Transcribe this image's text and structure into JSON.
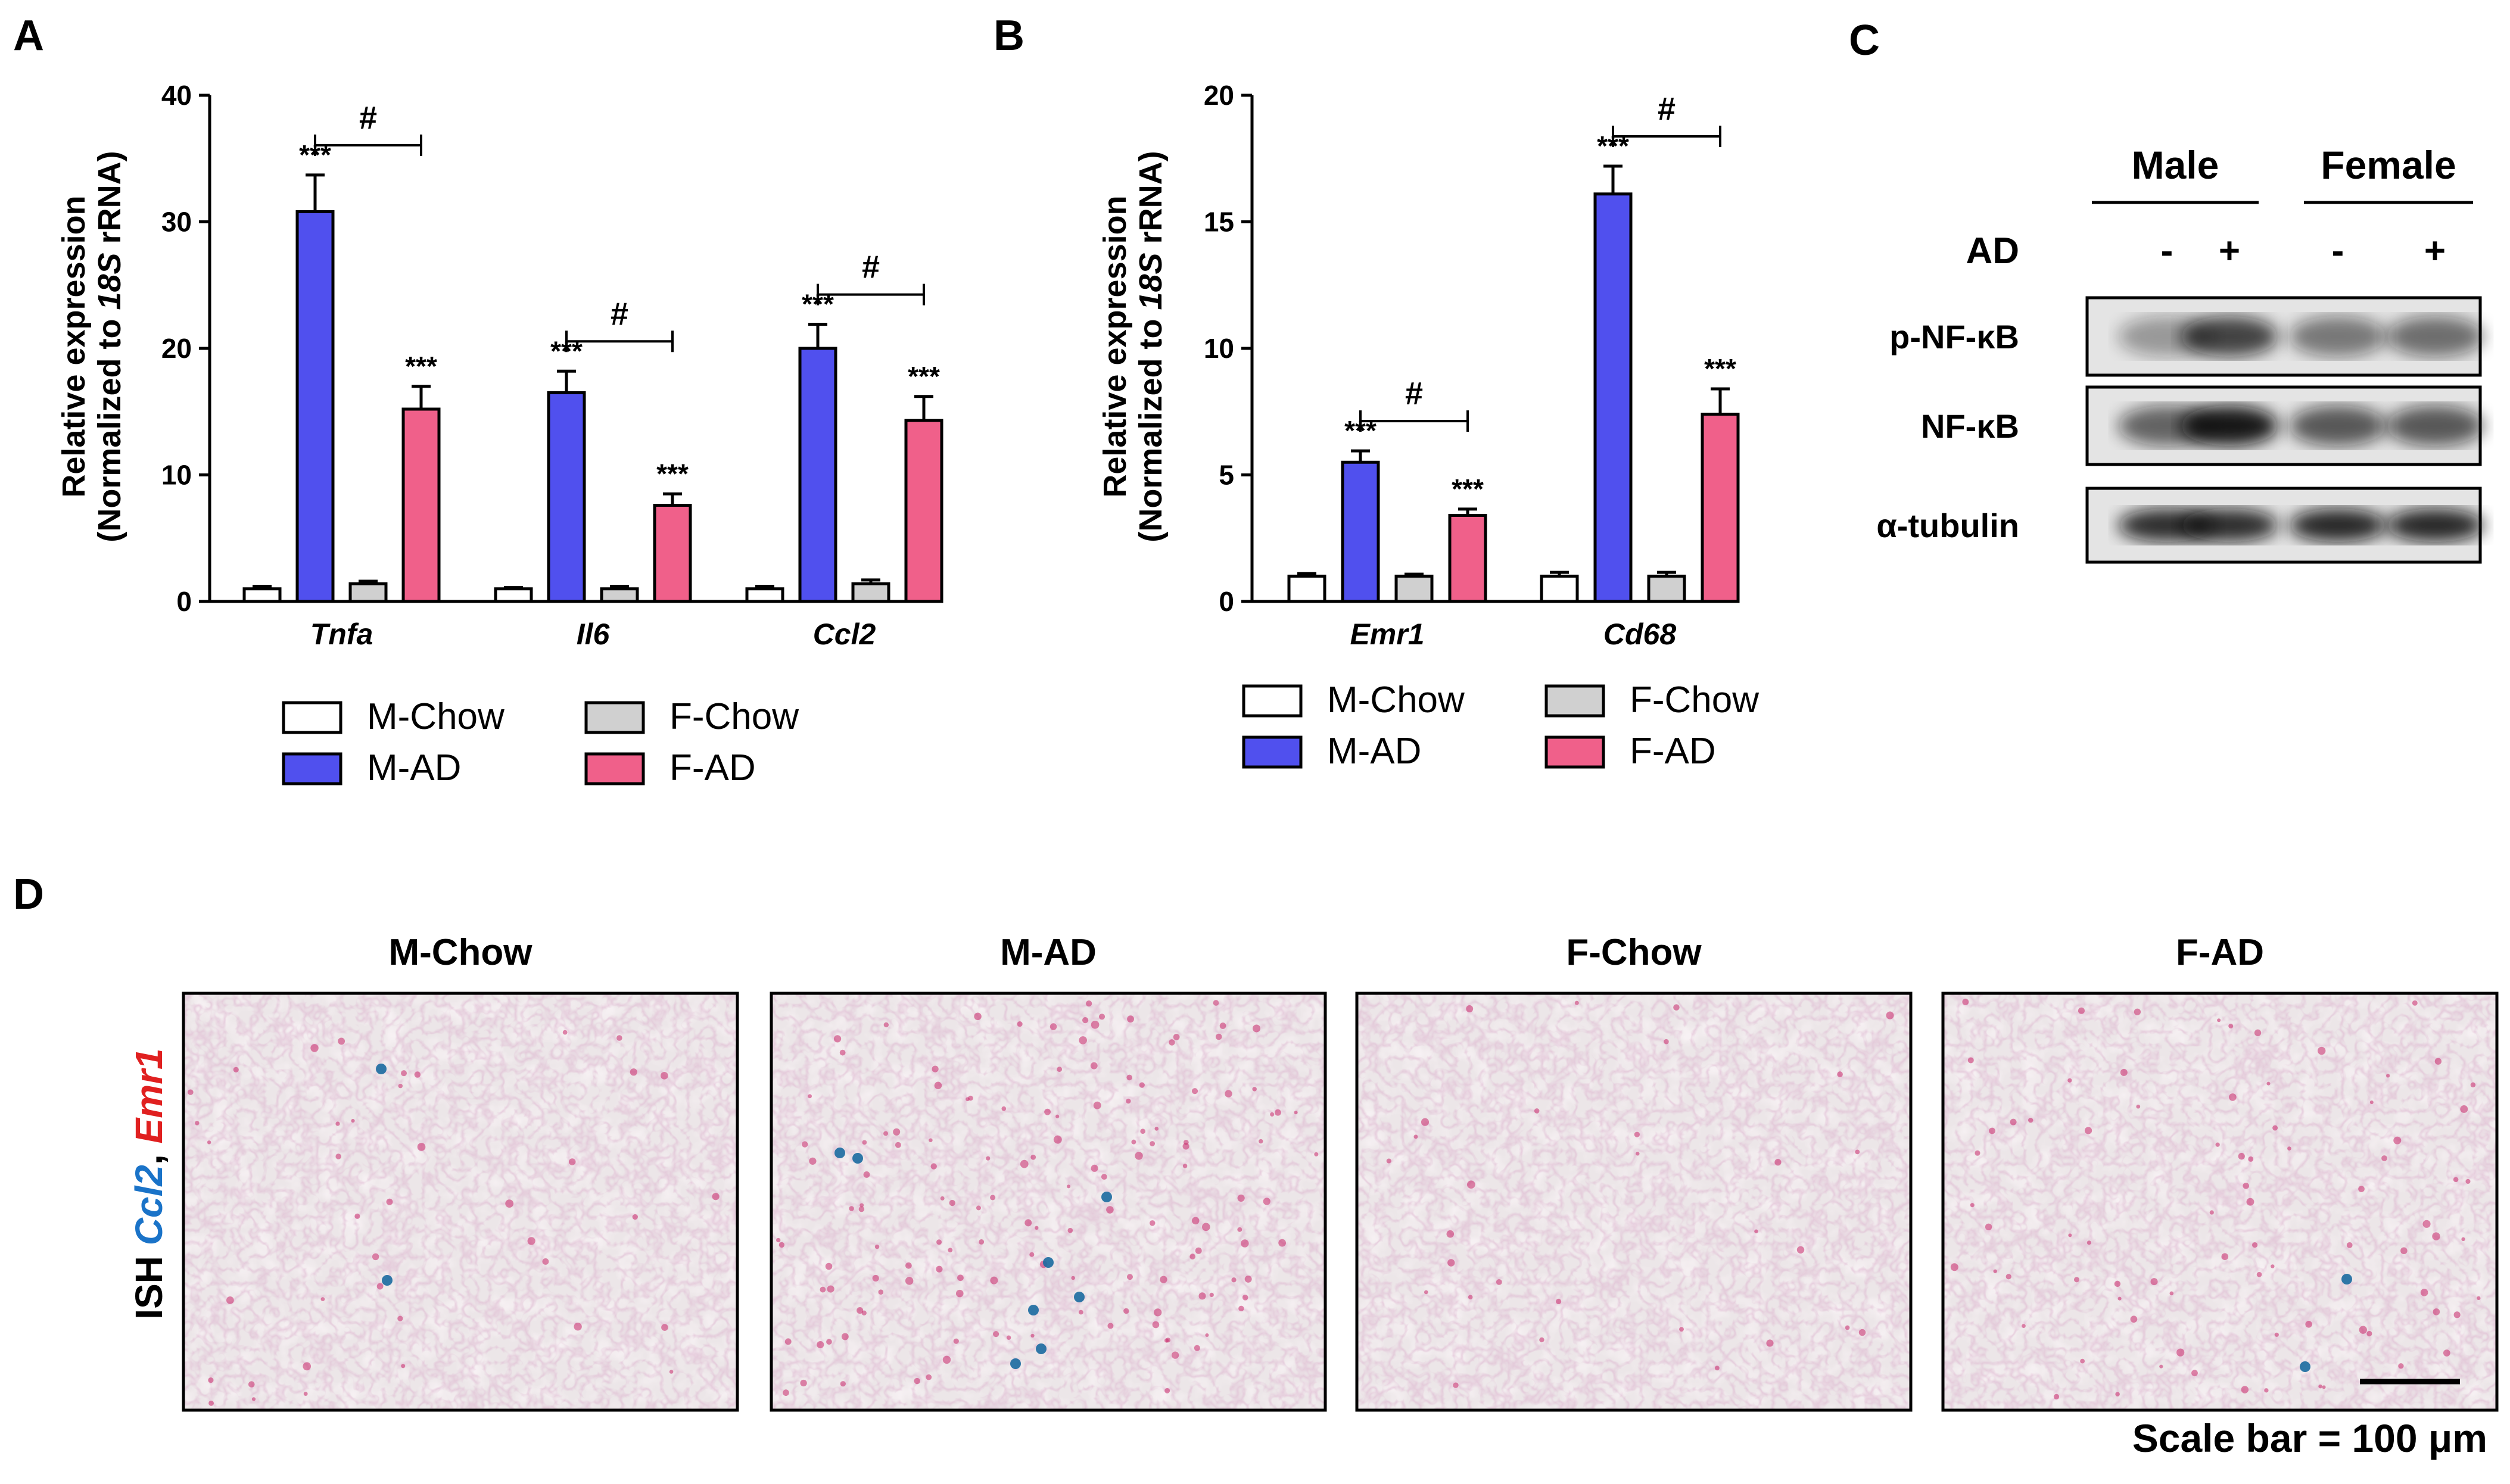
{
  "panels": {
    "a": "A",
    "b": "B",
    "c": "C",
    "d": "D"
  },
  "colors": {
    "M-Chow": "#ffffff",
    "M-AD": "#5050ee",
    "F-Chow": "#d0d0d0",
    "F-AD": "#f0608a",
    "ccl2_blue": "#1a73c8",
    "emr1_red": "#e02020"
  },
  "legend": [
    "M-Chow",
    "M-AD",
    "F-Chow",
    "F-AD"
  ],
  "chart_data": [
    {
      "type": "bar",
      "panel": "A",
      "ylabel_line1": "Relative expression",
      "ylabel_line2_pre": "(Normalized to ",
      "ylabel_line2_italic": "18S",
      "ylabel_line2_post": " rRNA)",
      "ylim": [
        0,
        40
      ],
      "yticks": [
        "0",
        "10",
        "20",
        "30",
        "40"
      ],
      "categories": [
        "Tnfa",
        "Il6",
        "Ccl2"
      ],
      "series": [
        {
          "name": "M-Chow",
          "values": [
            1.0,
            1.0,
            1.0
          ],
          "errors": [
            0.2,
            0.1,
            0.2
          ]
        },
        {
          "name": "M-AD",
          "values": [
            30.8,
            16.5,
            20.0
          ],
          "errors": [
            2.9,
            1.7,
            1.9
          ]
        },
        {
          "name": "F-Chow",
          "values": [
            1.4,
            1.0,
            1.4
          ],
          "errors": [
            0.2,
            0.2,
            0.3
          ]
        },
        {
          "name": "F-AD",
          "values": [
            15.2,
            7.6,
            14.3
          ],
          "errors": [
            1.8,
            0.9,
            1.9
          ]
        }
      ],
      "annotations": {
        "stars": [
          "***",
          "***",
          "***",
          "***",
          "***",
          "***"
        ],
        "hash": [
          "#",
          "#",
          "#"
        ]
      }
    },
    {
      "type": "bar",
      "panel": "B",
      "ylabel_line1": "Relative expression",
      "ylabel_line2_pre": "(Normalized to ",
      "ylabel_line2_italic": "18S",
      "ylabel_line2_post": " rRNA)",
      "ylim": [
        0,
        20
      ],
      "yticks": [
        "0",
        "5",
        "10",
        "15",
        "20"
      ],
      "categories": [
        "Emr1",
        "Cd68"
      ],
      "series": [
        {
          "name": "M-Chow",
          "values": [
            1.0,
            1.0
          ],
          "errors": [
            0.1,
            0.15
          ]
        },
        {
          "name": "M-AD",
          "values": [
            5.5,
            16.1
          ],
          "errors": [
            0.45,
            1.1
          ]
        },
        {
          "name": "F-Chow",
          "values": [
            1.0,
            1.0
          ],
          "errors": [
            0.08,
            0.15
          ]
        },
        {
          "name": "F-AD",
          "values": [
            3.4,
            7.4
          ],
          "errors": [
            0.25,
            1.0
          ]
        }
      ],
      "annotations": {
        "stars": [
          "***",
          "***",
          "***",
          "***"
        ],
        "hash": [
          "#",
          "#"
        ]
      }
    }
  ],
  "blot": {
    "groups": [
      "Male",
      "Female"
    ],
    "ad_label": "AD",
    "lanes": [
      "-",
      "+",
      "-",
      "+"
    ],
    "rows": [
      "p-NF-κB",
      "NF-κB",
      "α-tubulin"
    ]
  },
  "ish": {
    "side_label_pre": "ISH ",
    "side_label_gene1": "Ccl2",
    "side_label_sep": ", ",
    "side_label_gene2": "Emr1",
    "titles": [
      "M-Chow",
      "M-AD",
      "F-Chow",
      "F-AD"
    ],
    "scale_bar_text": "Scale bar = 100 μm"
  }
}
